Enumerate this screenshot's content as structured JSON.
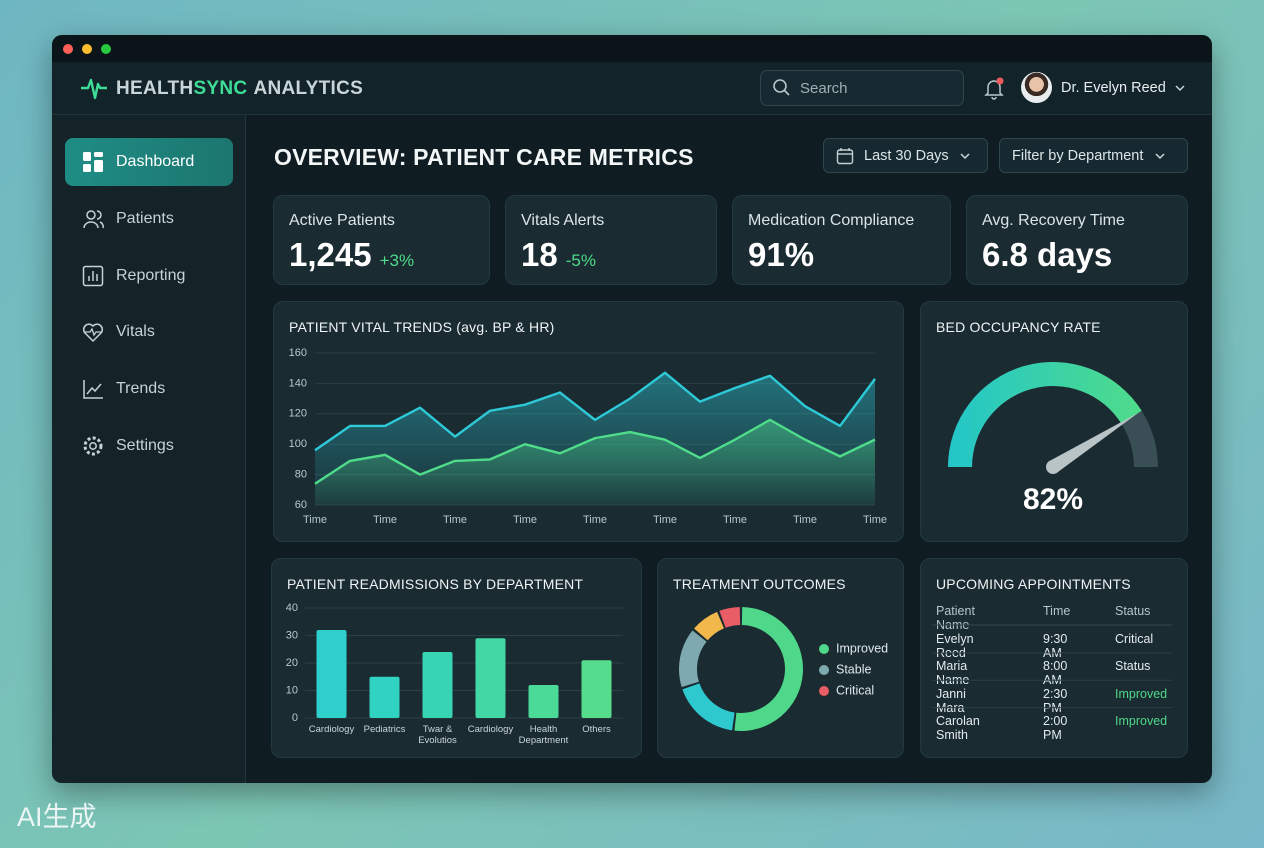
{
  "brand": [
    "HEALTH",
    "SYNC",
    "ANALYTICS"
  ],
  "search_placeholder": "Search",
  "user": "Dr. Evelyn Reed",
  "nav": [
    "Dashboard",
    "Patients",
    "Reporting",
    "Vitals",
    "Trends",
    "Settings"
  ],
  "page_title": "OVERVIEW: PATIENT CARE METRICS",
  "filters": [
    "Last 30 Days",
    "Filter by Department"
  ],
  "kpis": [
    {
      "label": "Active Patients",
      "value": "1,245",
      "change": "+3%"
    },
    {
      "label": "Vitals Alerts",
      "value": "18",
      "change": "-5%"
    },
    {
      "label": "Medication Compliance",
      "value": "91%"
    },
    {
      "label": "Avg. Recovery Time",
      "value": "6.8 days"
    }
  ],
  "vital_trends": {
    "type": "line",
    "title": "PATIENT VITAL TRENDS (avg. BP & HR)",
    "categories": [
      "Time",
      null,
      "Time",
      null,
      "Time",
      null,
      "Time",
      null,
      "Time",
      null,
      "Time",
      null,
      "Time",
      null,
      "Time",
      null,
      "Time"
    ],
    "series": [
      {
        "color": "#2ec9d6",
        "values": [
          96,
          112,
          112,
          124,
          105,
          122,
          126,
          134,
          116,
          130,
          147,
          128,
          137,
          145,
          125,
          112,
          143
        ]
      },
      {
        "color": "#4fdc8a",
        "values": [
          74,
          89,
          93,
          80,
          89,
          90,
          100,
          94,
          104,
          108,
          103,
          91,
          103,
          116,
          103,
          92,
          103
        ]
      }
    ],
    "ylim": [
      60,
      160
    ],
    "yticks": [
      60,
      80,
      100,
      120,
      140,
      160
    ],
    "grid": true
  },
  "bed_occupancy": {
    "type": "gauge",
    "title": "BED OCCUPANCY RATE",
    "value": 82,
    "value_label": "82%",
    "ylim": [
      0,
      100
    ]
  },
  "readmissions": {
    "type": "bar",
    "title": "PATIENT READMISSIONS BY DEPARTMENT",
    "categories": [
      "Cardiology",
      "Pediatrics",
      "Twar & Evolutios",
      "Cardiology",
      "Health Department",
      "Others"
    ],
    "values": [
      32,
      15,
      24,
      29,
      12,
      21
    ],
    "colors": [
      "#2fd0cc",
      "#30d2c2",
      "#38d5b4",
      "#42d8a6",
      "#4bda98",
      "#55dc8c"
    ],
    "ylim": [
      0,
      40
    ],
    "yticks": [
      0,
      10,
      20,
      30,
      40
    ],
    "grid": true
  },
  "treatment_outcomes": {
    "type": "donut",
    "title": "TREATMENT OUTCOMES",
    "categories": [
      "Improved",
      null,
      "Stable",
      null,
      "Critical"
    ],
    "values": [
      52,
      18,
      16,
      8,
      6
    ],
    "colors": [
      "#4fd889",
      "#2ec9cf",
      "#7fa9b0",
      "#f2b84b",
      "#e85d66"
    ]
  },
  "appointments": {
    "title": "UPCOMING APPOINTMENTS",
    "columns": [
      "Patient Name",
      "Time",
      "Status"
    ],
    "rows": [
      [
        "Evelyn Reed",
        "9:30 AM",
        "Critical"
      ],
      [
        "Maria Name",
        "8:00 AM",
        "Status"
      ],
      [
        "Janni Mara",
        "2:30 PM",
        "Improved"
      ],
      [
        "Carolan Smith",
        "2:00 PM",
        "Improved"
      ]
    ]
  },
  "watermark": "AI生成"
}
